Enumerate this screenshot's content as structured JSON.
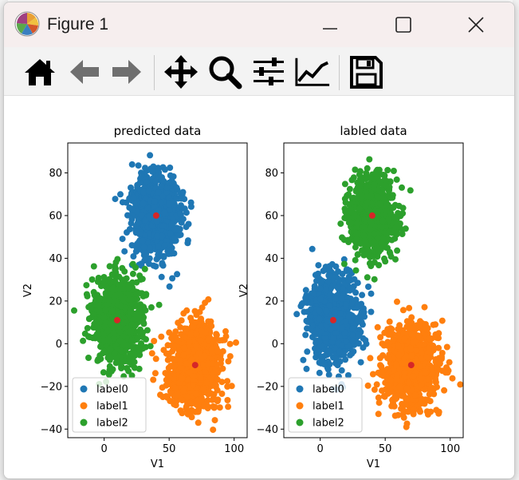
{
  "window": {
    "title": "Figure 1",
    "minimize_icon": "minimize-icon",
    "maximize_icon": "maximize-icon",
    "close_icon": "close-icon"
  },
  "toolbar": {
    "buttons": [
      {
        "name": "home-icon"
      },
      {
        "name": "back-arrow-icon"
      },
      {
        "name": "forward-arrow-icon"
      },
      {
        "name": "pan-move-icon"
      },
      {
        "name": "zoom-magnifier-icon"
      },
      {
        "name": "subplots-sliders-icon"
      },
      {
        "name": "edit-axis-curve-icon"
      },
      {
        "name": "save-floppy-icon"
      }
    ]
  },
  "colors": {
    "label0": "#1f77b4",
    "label1": "#ff7f0e",
    "label2": "#2ca02c",
    "centroid": "#d62728"
  },
  "chart_data": [
    {
      "type": "scatter",
      "title": "predicted data",
      "xlabel": "V1",
      "ylabel": "V2",
      "xlim": [
        -28,
        110
      ],
      "ylim": [
        -44,
        94
      ],
      "xticks": [
        0,
        50,
        100
      ],
      "yticks": [
        -40,
        -20,
        0,
        20,
        40,
        60,
        80
      ],
      "legend": {
        "placement": "lower-left",
        "entries": [
          "label0",
          "label1",
          "label2"
        ]
      },
      "series": [
        {
          "name": "label0",
          "color": "#1f77b4",
          "center": [
            40,
            60
          ],
          "spread": [
            9,
            9
          ]
        },
        {
          "name": "label1",
          "color": "#ff7f0e",
          "center": [
            70,
            -10
          ],
          "spread": [
            10,
            10
          ]
        },
        {
          "name": "label2",
          "color": "#2ca02c",
          "center": [
            10,
            11
          ],
          "spread": [
            10,
            10
          ]
        }
      ],
      "centroids": [
        [
          40,
          60
        ],
        [
          70,
          -10
        ],
        [
          10,
          11
        ]
      ]
    },
    {
      "type": "scatter",
      "title": "labled data",
      "xlabel": "V1",
      "ylabel": "V2",
      "xlim": [
        -28,
        110
      ],
      "ylim": [
        -44,
        94
      ],
      "xticks": [
        0,
        50,
        100
      ],
      "yticks": [
        -40,
        -20,
        0,
        20,
        40,
        60,
        80
      ],
      "legend": {
        "placement": "lower-left",
        "entries": [
          "label0",
          "label1",
          "label2"
        ]
      },
      "series": [
        {
          "name": "label0",
          "color": "#1f77b4",
          "center": [
            10,
            11
          ],
          "spread": [
            10,
            10
          ]
        },
        {
          "name": "label1",
          "color": "#ff7f0e",
          "center": [
            70,
            -10
          ],
          "spread": [
            10,
            10
          ]
        },
        {
          "name": "label2",
          "color": "#2ca02c",
          "center": [
            40,
            60
          ],
          "spread": [
            9,
            9
          ]
        }
      ],
      "centroids": [
        [
          40,
          60
        ],
        [
          70,
          -10
        ],
        [
          10,
          11
        ]
      ]
    }
  ]
}
